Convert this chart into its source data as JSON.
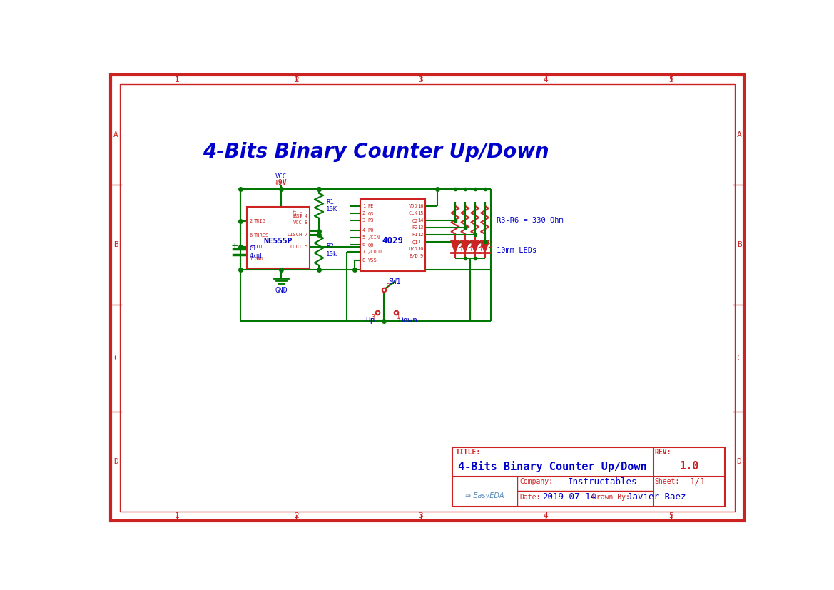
{
  "title": "4-Bits Binary Counter Up/Down",
  "title_color": "#0000CC",
  "title_fontsize": 20,
  "bg_color": "#FFFFFF",
  "border_color": "#CC2222",
  "schematic_green": "#007700",
  "schematic_red": "#CC2222",
  "schematic_blue": "#0000CC",
  "tb_title": "4-Bits Binary Counter Up/Down",
  "tb_company": "Instructables",
  "tb_date": "2019-07-14",
  "tb_drawn_by": "Javier Baez",
  "tb_rev": "1.0",
  "tb_sheet": "1/1",
  "row_labels": [
    "A",
    "B",
    "C",
    "D"
  ],
  "col_labels": [
    "1",
    "2",
    "3",
    "4",
    "5"
  ],
  "ne555_label": "NE555P",
  "ic4029_label": "4029",
  "r3r6_label": "R3-R6 = 330 Ohm",
  "led_label": "10mm LEDs",
  "vcc_label": "VCC",
  "vcc_val": "+9V",
  "gnd_label": "GND",
  "r1_label": "R1\n10K",
  "r2_label": "R2\n10k",
  "c1_label": "C1\n47uF",
  "sw1_label": "SW1",
  "up_label": "Up",
  "down_label": "Down"
}
